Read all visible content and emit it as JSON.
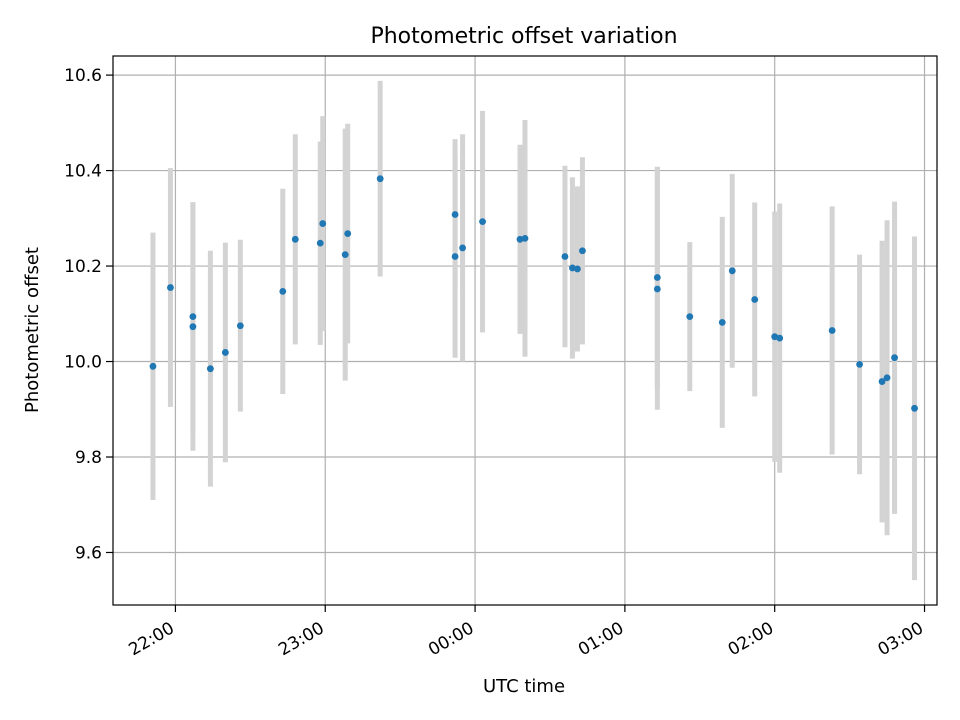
{
  "chart_data": {
    "type": "scatter",
    "title": "Photometric offset variation",
    "xlabel": "UTC time",
    "ylabel": "Photometric offset",
    "grid": true,
    "xlim": [
      "21:35",
      "03:05"
    ],
    "ylim": [
      9.49,
      10.64
    ],
    "x_ticks": [
      "22:00",
      "23:00",
      "00:00",
      "01:00",
      "02:00",
      "03:00"
    ],
    "y_ticks": [
      "9.6",
      "9.8",
      "10.0",
      "10.2",
      "10.4",
      "10.6"
    ],
    "point_color": "#1f77b4",
    "errorbar_color": "#d3d3d3",
    "points": [
      {
        "t": "21:51",
        "y": 9.99,
        "err": 0.28
      },
      {
        "t": "21:58",
        "y": 10.155,
        "err": 0.25
      },
      {
        "t": "22:07",
        "y": 10.073,
        "err": 0.26
      },
      {
        "t": "22:07",
        "y": 10.094,
        "err": 0.24
      },
      {
        "t": "22:14",
        "y": 9.985,
        "err": 0.247
      },
      {
        "t": "22:20",
        "y": 10.019,
        "err": 0.23
      },
      {
        "t": "22:26",
        "y": 10.075,
        "err": 0.18
      },
      {
        "t": "22:43",
        "y": 10.147,
        "err": 0.215
      },
      {
        "t": "22:48",
        "y": 10.256,
        "err": 0.22
      },
      {
        "t": "22:58",
        "y": 10.248,
        "err": 0.213
      },
      {
        "t": "22:59",
        "y": 10.289,
        "err": 0.225
      },
      {
        "t": "23:08",
        "y": 10.224,
        "err": 0.264
      },
      {
        "t": "23:09",
        "y": 10.268,
        "err": 0.23
      },
      {
        "t": "23:22",
        "y": 10.383,
        "err": 0.205
      },
      {
        "t": "23:52",
        "y": 10.22,
        "err": 0.212
      },
      {
        "t": "23:52",
        "y": 10.308,
        "err": 0.158
      },
      {
        "t": "23:55",
        "y": 10.238,
        "err": 0.238
      },
      {
        "t": "00:03",
        "y": 10.293,
        "err": 0.232
      },
      {
        "t": "00:18",
        "y": 10.256,
        "err": 0.198
      },
      {
        "t": "00:20",
        "y": 10.258,
        "err": 0.248
      },
      {
        "t": "00:36",
        "y": 10.22,
        "err": 0.19
      },
      {
        "t": "00:39",
        "y": 10.196,
        "err": 0.19
      },
      {
        "t": "00:41",
        "y": 10.194,
        "err": 0.173
      },
      {
        "t": "00:43",
        "y": 10.232,
        "err": 0.196
      },
      {
        "t": "01:13",
        "y": 10.152,
        "err": 0.253
      },
      {
        "t": "01:13",
        "y": 10.176,
        "err": 0.232
      },
      {
        "t": "01:26",
        "y": 10.094,
        "err": 0.156
      },
      {
        "t": "01:39",
        "y": 10.082,
        "err": 0.221
      },
      {
        "t": "01:43",
        "y": 10.19,
        "err": 0.203
      },
      {
        "t": "01:52",
        "y": 10.13,
        "err": 0.203
      },
      {
        "t": "02:00",
        "y": 10.052,
        "err": 0.262
      },
      {
        "t": "02:02",
        "y": 10.049,
        "err": 0.282
      },
      {
        "t": "02:23",
        "y": 10.065,
        "err": 0.26
      },
      {
        "t": "02:34",
        "y": 9.994,
        "err": 0.23
      },
      {
        "t": "02:43",
        "y": 9.958,
        "err": 0.295
      },
      {
        "t": "02:45",
        "y": 9.966,
        "err": 0.33
      },
      {
        "t": "02:48",
        "y": 10.008,
        "err": 0.327
      },
      {
        "t": "02:56",
        "y": 9.902,
        "err": 0.36
      }
    ]
  }
}
